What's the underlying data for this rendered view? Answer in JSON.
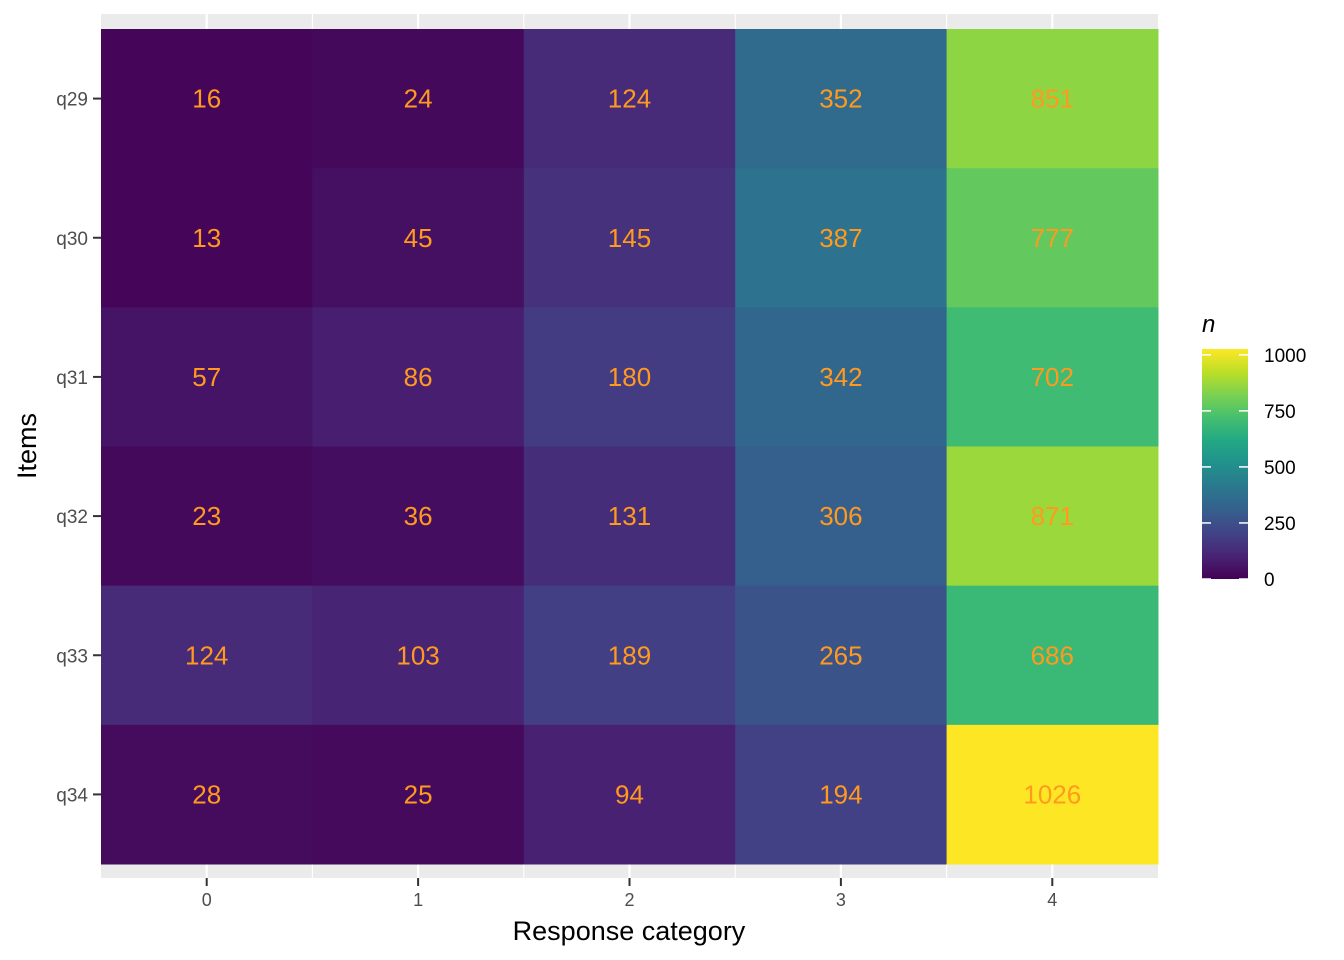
{
  "chart_data": {
    "type": "heatmap",
    "xlabel": "Response category",
    "ylabel": "Items",
    "x_categories": [
      "0",
      "1",
      "2",
      "3",
      "4"
    ],
    "y_categories": [
      "q29",
      "q30",
      "q31",
      "q32",
      "q33",
      "q34"
    ],
    "values": [
      [
        16,
        24,
        124,
        352,
        851
      ],
      [
        13,
        45,
        145,
        387,
        777
      ],
      [
        57,
        86,
        180,
        342,
        702
      ],
      [
        23,
        36,
        131,
        306,
        871
      ],
      [
        124,
        103,
        189,
        265,
        686
      ],
      [
        28,
        25,
        94,
        194,
        1026
      ]
    ],
    "color_scale": "viridis",
    "value_range": [
      0,
      1026
    ],
    "legend": {
      "title": "n",
      "ticks": [
        0,
        250,
        500,
        750,
        1000
      ],
      "position": "right"
    },
    "label_color": "#FF9A1F",
    "panel_background": "#EBEBEB",
    "grid": true
  }
}
